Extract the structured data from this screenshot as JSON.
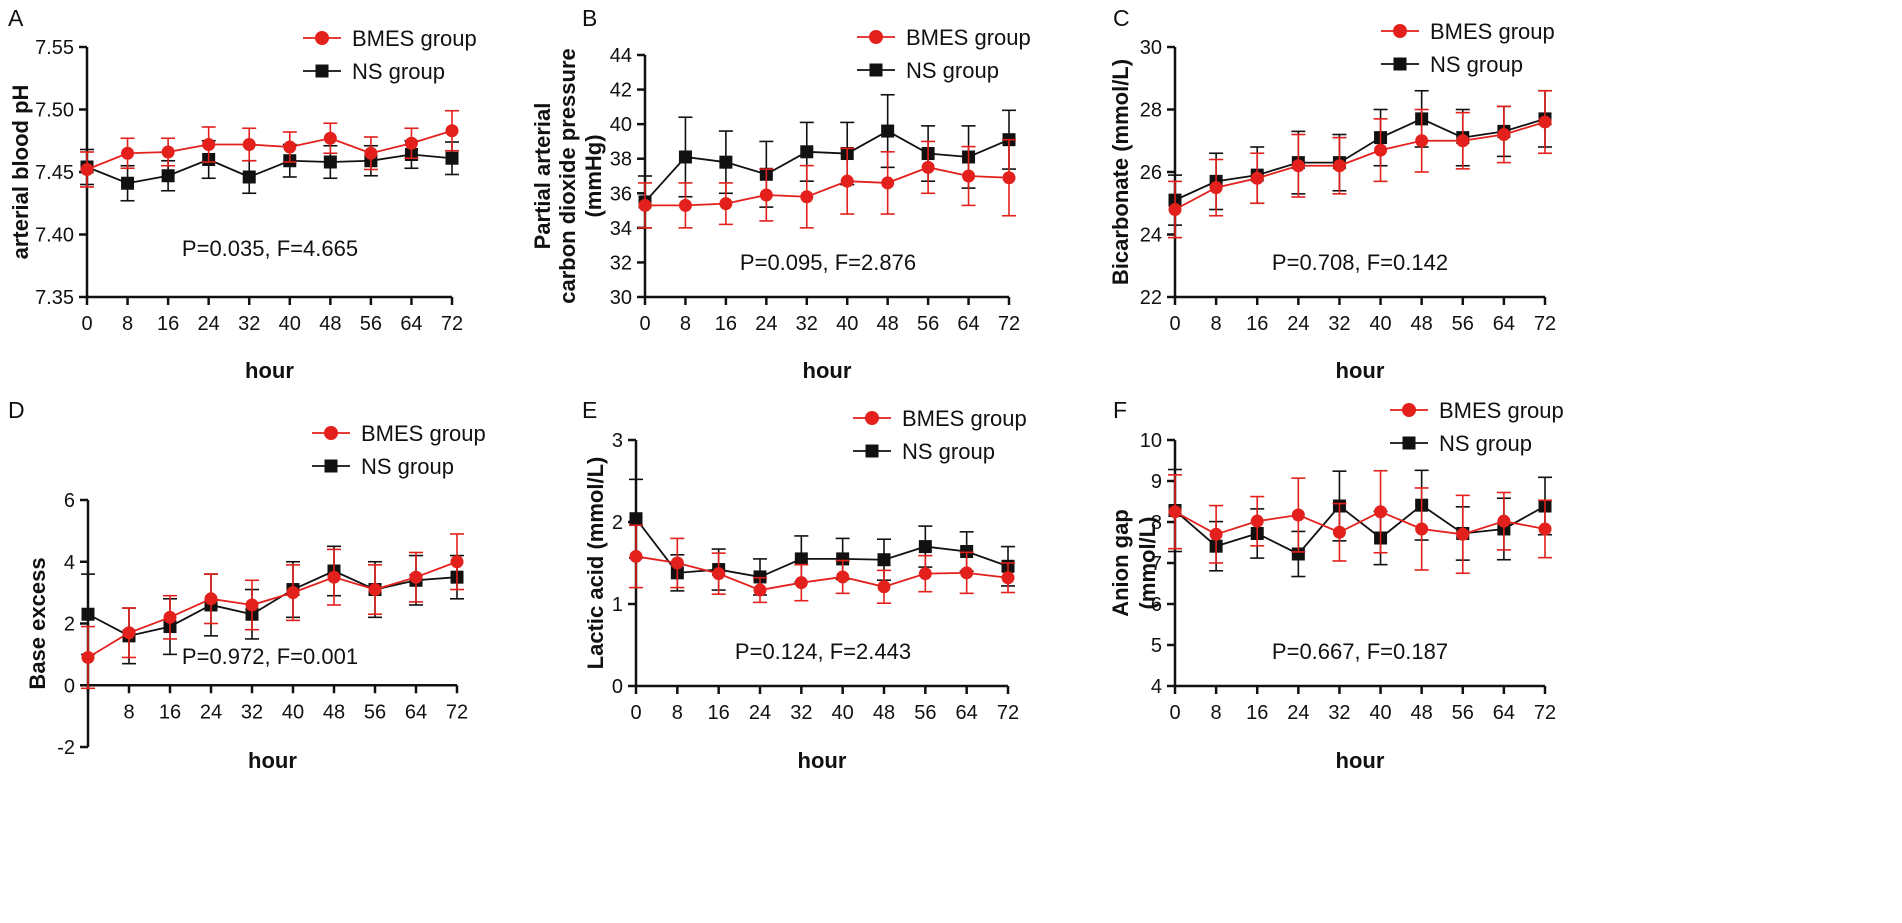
{
  "figure": {
    "colors": {
      "bmes": "#e3201b",
      "ns": "#111111"
    },
    "xlabel": "hour"
  },
  "chart_data": [
    {
      "type": "line",
      "letter": "A",
      "ylabel": [
        "arterial blood pH"
      ],
      "ylim": [
        7.35,
        7.55
      ],
      "yticks": [
        "7.35",
        "7.40",
        "7.45",
        "7.50",
        "7.55"
      ],
      "xlim": [
        0,
        72
      ],
      "xticks": [
        "0",
        "8",
        "16",
        "24",
        "32",
        "40",
        "48",
        "56",
        "64",
        "72"
      ],
      "x": [
        0,
        8,
        16,
        24,
        32,
        40,
        48,
        56,
        64,
        72
      ],
      "annotation": "P=0.035,  F=4.665",
      "series": [
        {
          "name": "BMES group",
          "color": "#e3201b",
          "marker": "circle",
          "values": [
            7.452,
            7.465,
            7.466,
            7.472,
            7.472,
            7.47,
            7.477,
            7.465,
            7.473,
            7.483
          ],
          "errors": [
            0.014,
            0.012,
            0.011,
            0.014,
            0.013,
            0.012,
            0.012,
            0.013,
            0.012,
            0.016
          ]
        },
        {
          "name": "NS group",
          "color": "#111111",
          "marker": "square",
          "values": [
            7.454,
            7.441,
            7.447,
            7.46,
            7.446,
            7.459,
            7.458,
            7.459,
            7.464,
            7.461
          ],
          "errors": [
            0.014,
            0.014,
            0.012,
            0.015,
            0.013,
            0.013,
            0.013,
            0.012,
            0.011,
            0.013
          ]
        }
      ]
    },
    {
      "type": "line",
      "letter": "B",
      "ylabel": [
        "Partial arterial",
        "carbon dioxide pressure",
        "(mmHg)"
      ],
      "ylim": [
        30,
        44
      ],
      "yticks": [
        "30",
        "32",
        "34",
        "36",
        "38",
        "40",
        "42",
        "44"
      ],
      "xlim": [
        0,
        72
      ],
      "xticks": [
        "0",
        "8",
        "16",
        "24",
        "32",
        "40",
        "48",
        "56",
        "64",
        "72"
      ],
      "x": [
        0,
        8,
        16,
        24,
        32,
        40,
        48,
        56,
        64,
        72
      ],
      "annotation": "P=0.095,  F=2.876",
      "series": [
        {
          "name": "BMES group",
          "color": "#e3201b",
          "marker": "circle",
          "values": [
            35.3,
            35.3,
            35.4,
            35.9,
            35.8,
            36.7,
            36.6,
            37.5,
            37.0,
            36.9
          ],
          "errors": [
            1.3,
            1.3,
            1.2,
            1.5,
            1.8,
            1.9,
            1.8,
            1.5,
            1.7,
            2.2
          ]
        },
        {
          "name": "NS group",
          "color": "#111111",
          "marker": "square",
          "values": [
            35.5,
            38.1,
            37.8,
            37.1,
            38.4,
            38.3,
            39.6,
            38.3,
            38.1,
            39.1
          ],
          "errors": [
            1.5,
            2.3,
            1.8,
            1.9,
            1.7,
            1.8,
            2.1,
            1.6,
            1.8,
            1.7
          ]
        }
      ]
    },
    {
      "type": "line",
      "letter": "C",
      "ylabel": [
        "Bicarbonate (mmol/L)"
      ],
      "ylim": [
        22,
        30
      ],
      "yticks": [
        "22",
        "24",
        "26",
        "28",
        "30"
      ],
      "xlim": [
        0,
        72
      ],
      "xticks": [
        "0",
        "8",
        "16",
        "24",
        "32",
        "40",
        "48",
        "56",
        "64",
        "72"
      ],
      "x": [
        0,
        8,
        16,
        24,
        32,
        40,
        48,
        56,
        64,
        72
      ],
      "annotation": "P=0.708,  F=0.142",
      "series": [
        {
          "name": "BMES group",
          "color": "#e3201b",
          "marker": "circle",
          "values": [
            24.8,
            25.5,
            25.8,
            26.2,
            26.2,
            26.7,
            27.0,
            27.0,
            27.2,
            27.6
          ],
          "errors": [
            0.9,
            0.9,
            0.8,
            1.0,
            0.9,
            1.0,
            1.0,
            0.9,
            0.9,
            1.0
          ]
        },
        {
          "name": "NS group",
          "color": "#111111",
          "marker": "square",
          "values": [
            25.1,
            25.7,
            25.9,
            26.3,
            26.3,
            27.1,
            27.7,
            27.1,
            27.3,
            27.7
          ],
          "errors": [
            0.8,
            0.9,
            0.9,
            1.0,
            0.9,
            0.9,
            0.9,
            0.9,
            0.8,
            0.9
          ]
        }
      ]
    },
    {
      "type": "line",
      "letter": "D",
      "ylabel": [
        "Base excess"
      ],
      "ylim": [
        -2,
        6
      ],
      "yticks": [
        "-2",
        "0",
        "2",
        "4",
        "6"
      ],
      "xlim": [
        0,
        72
      ],
      "xticks": [
        "8",
        "16",
        "24",
        "32",
        "40",
        "48",
        "56",
        "64",
        "72"
      ],
      "x": [
        0,
        8,
        16,
        24,
        32,
        40,
        48,
        56,
        64,
        72
      ],
      "annotation": "P=0.972,  F=0.001",
      "series": [
        {
          "name": "BMES group",
          "color": "#e3201b",
          "marker": "circle",
          "values": [
            0.9,
            1.7,
            2.2,
            2.8,
            2.6,
            3.0,
            3.5,
            3.1,
            3.5,
            4.0
          ],
          "errors": [
            1.0,
            0.8,
            0.7,
            0.8,
            0.8,
            0.9,
            0.9,
            0.8,
            0.8,
            0.9
          ]
        },
        {
          "name": "NS group",
          "color": "#111111",
          "marker": "square",
          "values": [
            2.3,
            1.6,
            1.9,
            2.6,
            2.3,
            3.1,
            3.7,
            3.1,
            3.4,
            3.5
          ],
          "errors": [
            1.3,
            0.9,
            0.9,
            1.0,
            0.8,
            0.9,
            0.8,
            0.9,
            0.8,
            0.7
          ]
        }
      ]
    },
    {
      "type": "line",
      "letter": "E",
      "ylabel": [
        "Lactic acid (mmol/L)"
      ],
      "ylim": [
        0,
        3
      ],
      "yticks": [
        "0",
        "1",
        "2",
        "3"
      ],
      "xlim": [
        0,
        72
      ],
      "xticks": [
        "0",
        "8",
        "16",
        "24",
        "32",
        "40",
        "48",
        "56",
        "64",
        "72"
      ],
      "x": [
        0,
        8,
        16,
        24,
        32,
        40,
        48,
        56,
        64,
        72
      ],
      "annotation": "P=0.124,  F=2.443",
      "series": [
        {
          "name": "BMES group",
          "color": "#e3201b",
          "marker": "circle",
          "values": [
            1.58,
            1.5,
            1.37,
            1.17,
            1.26,
            1.33,
            1.21,
            1.37,
            1.38,
            1.32
          ],
          "errors": [
            0.38,
            0.3,
            0.25,
            0.15,
            0.22,
            0.2,
            0.2,
            0.22,
            0.25,
            0.18
          ]
        },
        {
          "name": "NS group",
          "color": "#111111",
          "marker": "square",
          "values": [
            2.04,
            1.38,
            1.42,
            1.33,
            1.55,
            1.55,
            1.54,
            1.7,
            1.64,
            1.46
          ],
          "errors": [
            0.48,
            0.22,
            0.25,
            0.22,
            0.28,
            0.25,
            0.25,
            0.25,
            0.24,
            0.24
          ]
        }
      ]
    },
    {
      "type": "line",
      "letter": "F",
      "ylabel": [
        "Anion gap",
        "(mmol/L)"
      ],
      "ylim": [
        4,
        10
      ],
      "yticks": [
        "4",
        "5",
        "6",
        "7",
        "8",
        "9",
        "10"
      ],
      "xlim": [
        0,
        72
      ],
      "xticks": [
        "0",
        "8",
        "16",
        "24",
        "32",
        "40",
        "48",
        "56",
        "64",
        "72"
      ],
      "x": [
        0,
        8,
        16,
        24,
        32,
        40,
        48,
        56,
        64,
        72
      ],
      "annotation": "P=0.667,  F=0.187",
      "series": [
        {
          "name": "BMES group",
          "color": "#e3201b",
          "marker": "circle",
          "values": [
            8.25,
            7.7,
            8.02,
            8.17,
            7.75,
            8.25,
            7.83,
            7.7,
            8.02,
            7.83
          ],
          "errors": [
            0.9,
            0.7,
            0.6,
            0.9,
            0.7,
            1.0,
            1.0,
            0.95,
            0.7,
            0.7
          ]
        },
        {
          "name": "NS group",
          "color": "#111111",
          "marker": "square",
          "values": [
            8.28,
            7.41,
            7.72,
            7.22,
            8.39,
            7.61,
            8.41,
            7.72,
            7.83,
            8.39
          ],
          "errors": [
            1.0,
            0.6,
            0.6,
            0.55,
            0.85,
            0.65,
            0.85,
            0.65,
            0.75,
            0.7
          ]
        }
      ]
    }
  ]
}
